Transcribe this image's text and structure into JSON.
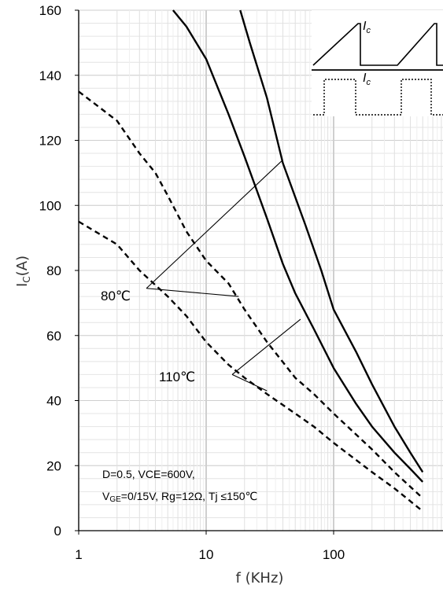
{
  "chart_data": {
    "type": "line",
    "title": "",
    "xlabel": "f (KHz)",
    "ylabel_main": "I",
    "ylabel_sub": "C",
    "ylabel_rest": "(A)",
    "xscale": "log",
    "xlim": [
      1,
      600
    ],
    "ylim": [
      0,
      160
    ],
    "yticks": [
      0,
      20,
      40,
      60,
      80,
      100,
      120,
      140,
      160
    ],
    "ytick_labels": [
      "0",
      "20",
      "40",
      "60",
      "80",
      "100",
      "120",
      "140",
      "160"
    ],
    "xticks": [
      1,
      10,
      100
    ],
    "xtick_labels": [
      "1",
      "10",
      "100"
    ],
    "grid": true,
    "series": [
      {
        "style": "solid",
        "condition": "80℃",
        "waveform": "square",
        "points": [
          [
            5.5,
            160
          ],
          [
            7,
            155
          ],
          [
            10,
            145
          ],
          [
            15,
            128
          ],
          [
            20,
            115
          ],
          [
            30,
            96
          ],
          [
            40,
            82
          ],
          [
            50,
            73
          ],
          [
            70,
            62
          ],
          [
            100,
            50
          ],
          [
            150,
            39
          ],
          [
            200,
            32
          ],
          [
            300,
            24
          ],
          [
            400,
            19
          ],
          [
            500,
            15
          ]
        ]
      },
      {
        "style": "solid",
        "condition": "80℃",
        "waveform": "sawtooth",
        "points": [
          [
            18.5,
            160
          ],
          [
            22,
            150
          ],
          [
            30,
            133
          ],
          [
            40,
            113
          ],
          [
            60,
            94
          ],
          [
            80,
            80
          ],
          [
            100,
            68
          ],
          [
            150,
            55
          ],
          [
            200,
            45
          ],
          [
            300,
            32
          ],
          [
            400,
            24
          ],
          [
            500,
            18
          ]
        ]
      },
      {
        "style": "dashed",
        "condition": "110℃",
        "waveform": "square",
        "points": [
          [
            1,
            95
          ],
          [
            2,
            88
          ],
          [
            3,
            80
          ],
          [
            5,
            72
          ],
          [
            7,
            66
          ],
          [
            10,
            58
          ],
          [
            15,
            51
          ],
          [
            20,
            47
          ],
          [
            30,
            42
          ],
          [
            50,
            36
          ],
          [
            70,
            32
          ],
          [
            100,
            27
          ],
          [
            200,
            18
          ],
          [
            300,
            13
          ],
          [
            500,
            6
          ]
        ]
      },
      {
        "style": "dashed",
        "condition": "110℃",
        "waveform": "sawtooth",
        "points": [
          [
            1,
            135
          ],
          [
            2,
            126
          ],
          [
            3,
            116
          ],
          [
            4,
            110
          ],
          [
            5,
            103
          ],
          [
            7,
            92
          ],
          [
            10,
            83
          ],
          [
            15,
            76
          ],
          [
            20,
            68
          ],
          [
            30,
            58
          ],
          [
            50,
            47
          ],
          [
            70,
            42
          ],
          [
            100,
            36
          ],
          [
            200,
            25
          ],
          [
            300,
            18
          ],
          [
            500,
            10
          ]
        ]
      }
    ],
    "annotations": {
      "label_80": "80℃",
      "label_110": "110℃",
      "inset_label_top": "I",
      "inset_label_top_sub": "c",
      "inset_label_bottom": "I",
      "inset_label_bottom_sub": "c",
      "conditions_line1": "D=0.5,  VCE=600V,",
      "conditions_line2_v": "V",
      "conditions_line2_sub": "GE",
      "conditions_line2_rest": "=0/15V,  Rg=12Ω,  Tj ≤150℃"
    }
  }
}
